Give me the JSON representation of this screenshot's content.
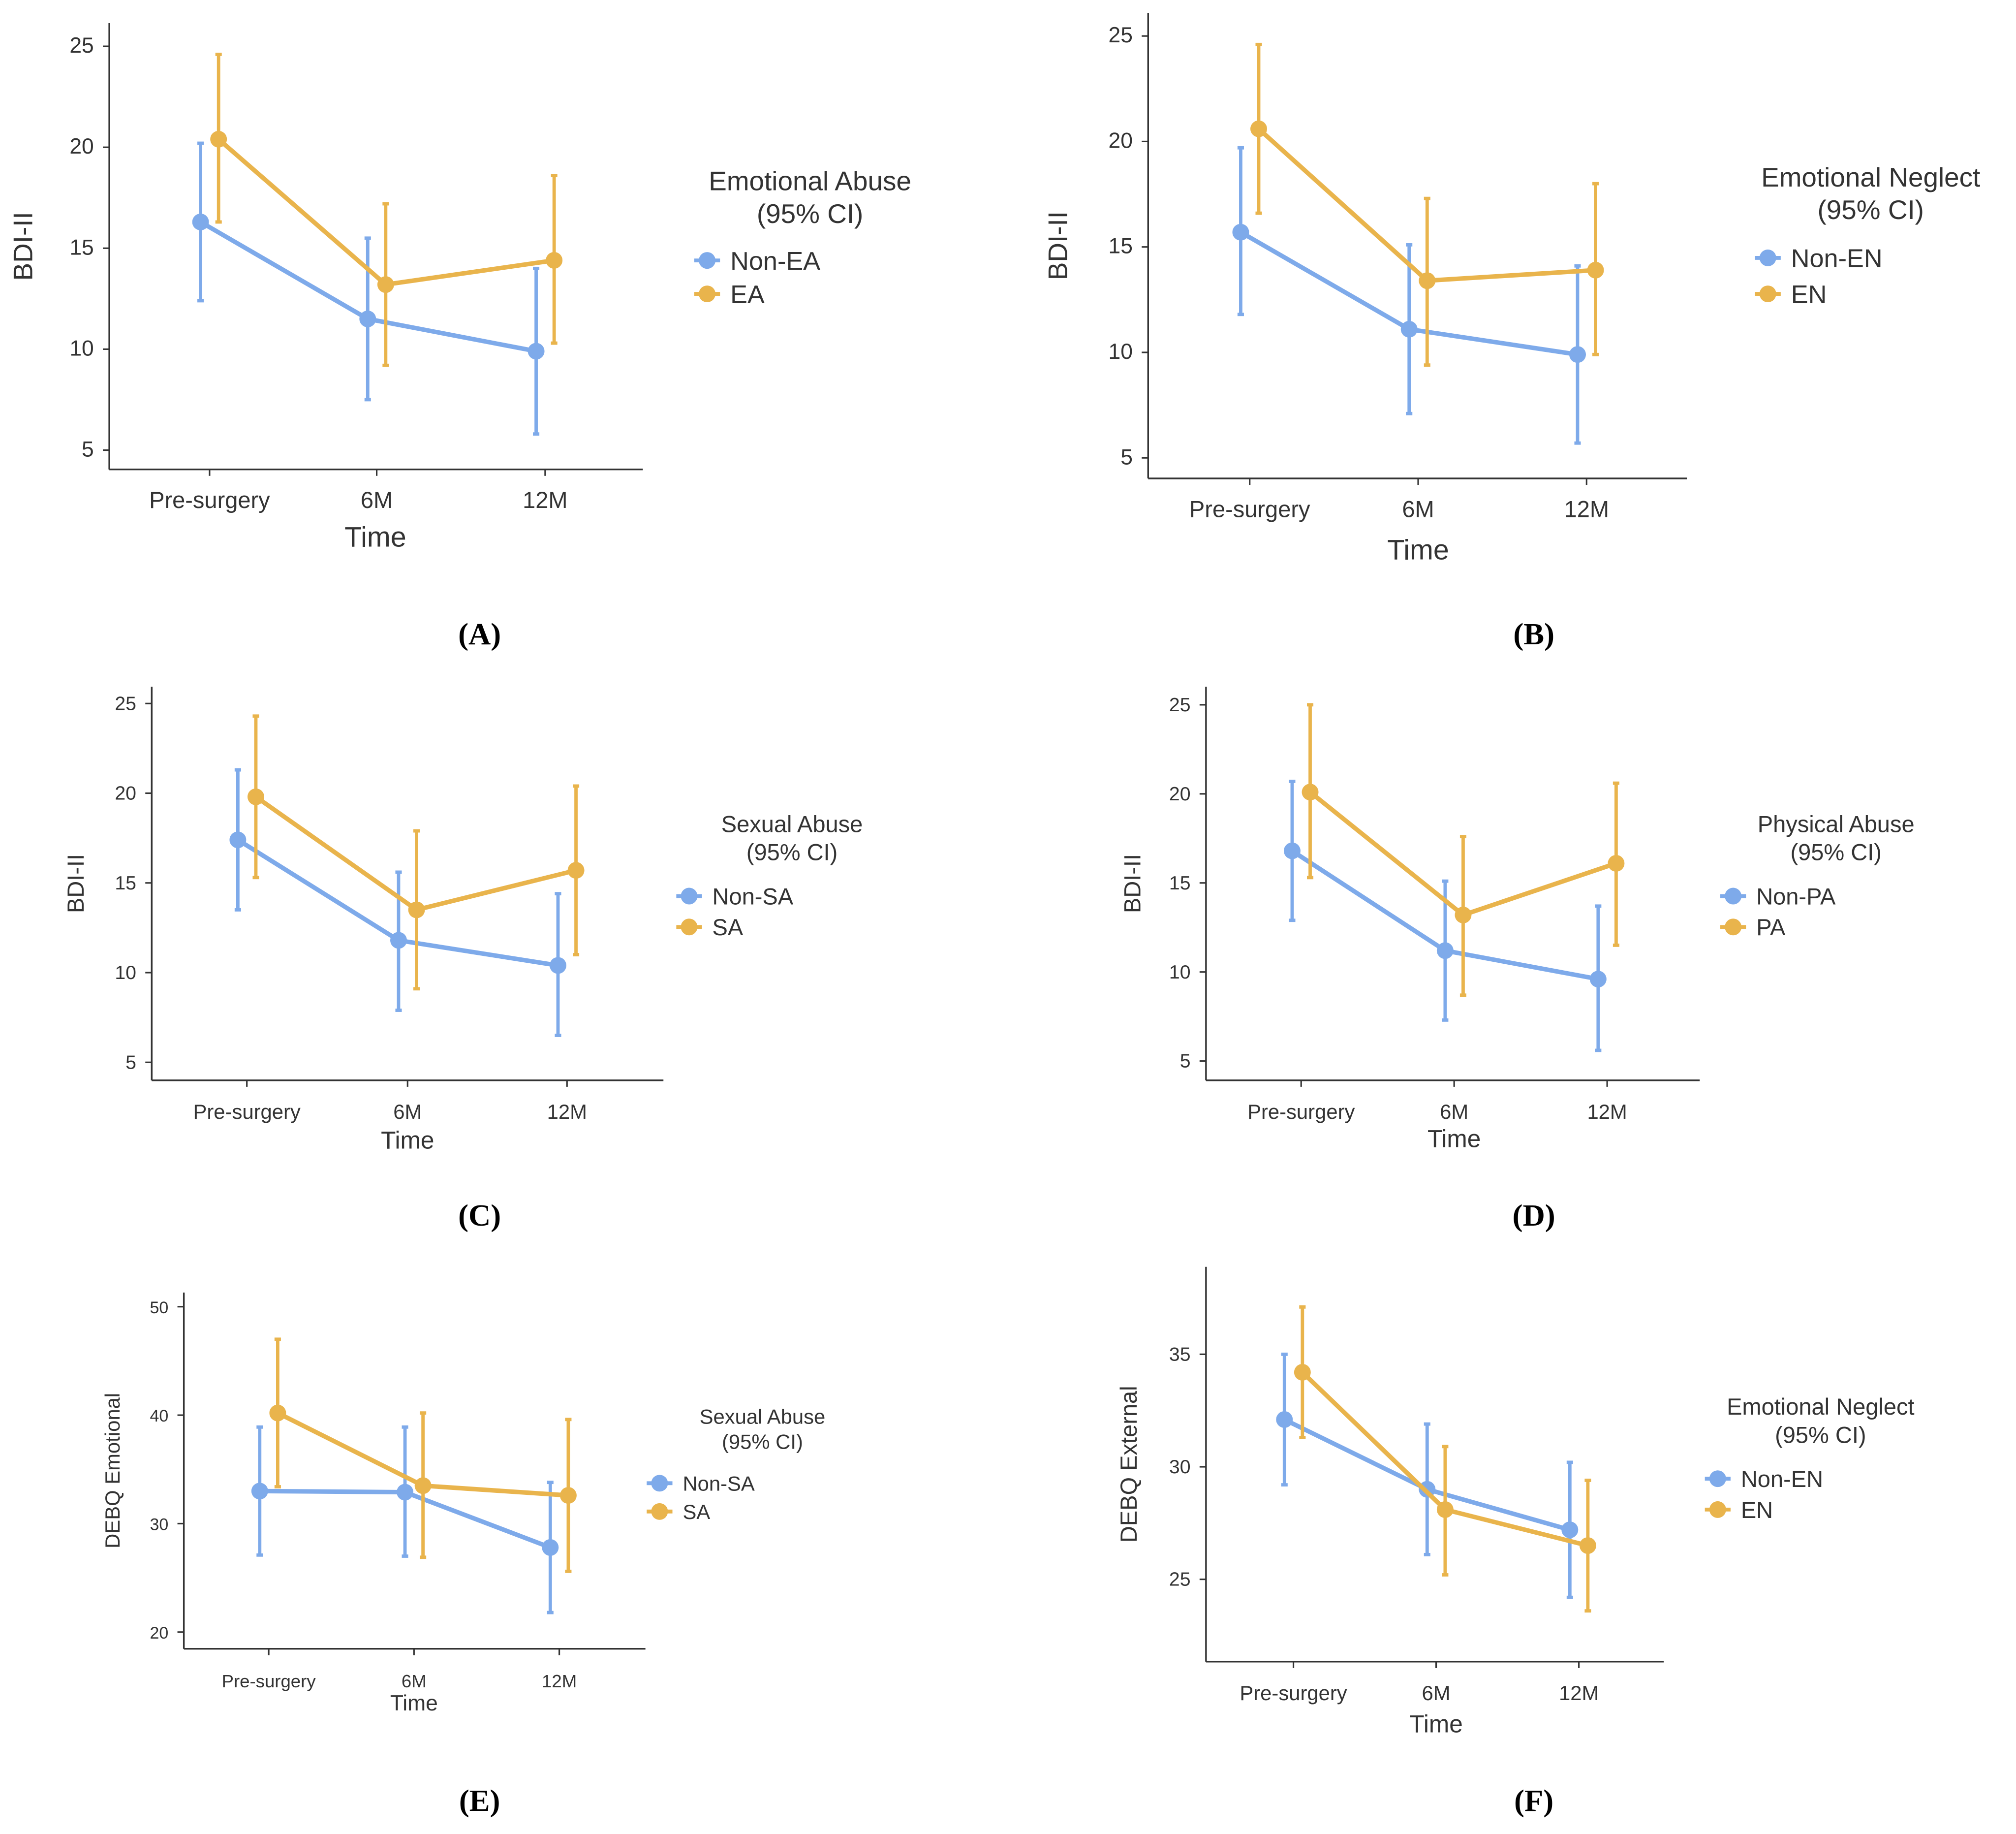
{
  "colors": {
    "group0": "#7eaaea",
    "group1": "#e9b44c",
    "axis": "#333333"
  },
  "chart_data": [
    {
      "type": "line",
      "panel": "(A)",
      "xlabel": "Time",
      "ylabel": "BDI-II",
      "categories": [
        "Pre-surgery",
        "6M",
        "12M"
      ],
      "ylim": [
        4,
        26
      ],
      "yticks": [
        5,
        10,
        15,
        20,
        25
      ],
      "legend_title": [
        "Emotional Abuse",
        "(95% CI)"
      ],
      "legend": "right",
      "series": [
        {
          "name": "Non-EA",
          "values": [
            16.3,
            11.5,
            9.9
          ],
          "lower": [
            12.4,
            7.5,
            5.8
          ],
          "upper": [
            20.2,
            15.5,
            14.0
          ]
        },
        {
          "name": "EA",
          "values": [
            20.4,
            13.2,
            14.4
          ],
          "lower": [
            16.3,
            9.2,
            10.3
          ],
          "upper": [
            24.6,
            17.2,
            18.6
          ]
        }
      ]
    },
    {
      "type": "line",
      "panel": "(B)",
      "xlabel": "Time",
      "ylabel": "BDI-II",
      "categories": [
        "Pre-surgery",
        "6M",
        "12M"
      ],
      "ylim": [
        4,
        26
      ],
      "yticks": [
        5,
        10,
        15,
        20,
        25
      ],
      "legend_title": [
        "Emotional Neglect",
        "(95% CI)"
      ],
      "legend": "right",
      "series": [
        {
          "name": "Non-EN",
          "values": [
            15.7,
            11.1,
            9.9
          ],
          "lower": [
            11.8,
            7.1,
            5.7
          ],
          "upper": [
            19.7,
            15.1,
            14.1
          ]
        },
        {
          "name": "EN",
          "values": [
            20.6,
            13.4,
            13.9
          ],
          "lower": [
            16.6,
            9.4,
            9.9
          ],
          "upper": [
            24.6,
            17.3,
            18.0
          ]
        }
      ]
    },
    {
      "type": "line",
      "panel": "(C)",
      "xlabel": "Time",
      "ylabel": "BDI-II",
      "categories": [
        "Pre-surgery",
        "6M",
        "12M"
      ],
      "ylim": [
        4,
        26
      ],
      "yticks": [
        5,
        10,
        15,
        20,
        25
      ],
      "legend_title": [
        "Sexual Abuse",
        "(95% CI)"
      ],
      "legend": "right",
      "series": [
        {
          "name": "Non-SA",
          "values": [
            17.4,
            11.8,
            10.4
          ],
          "lower": [
            13.5,
            7.9,
            6.5
          ],
          "upper": [
            21.3,
            15.6,
            14.4
          ]
        },
        {
          "name": "SA",
          "values": [
            19.8,
            13.5,
            15.7
          ],
          "lower": [
            15.3,
            9.1,
            11.0
          ],
          "upper": [
            24.3,
            17.9,
            20.4
          ]
        }
      ]
    },
    {
      "type": "line",
      "panel": "(D)",
      "xlabel": "Time",
      "ylabel": "BDI-II",
      "categories": [
        "Pre-surgery",
        "6M",
        "12M"
      ],
      "ylim": [
        4,
        26
      ],
      "yticks": [
        5,
        10,
        15,
        20,
        25
      ],
      "legend_title": [
        "Physical Abuse",
        "(95% CI)"
      ],
      "legend": "right",
      "series": [
        {
          "name": "Non-PA",
          "values": [
            16.8,
            11.2,
            9.6
          ],
          "lower": [
            12.9,
            7.3,
            5.6
          ],
          "upper": [
            20.7,
            15.1,
            13.7
          ]
        },
        {
          "name": "PA",
          "values": [
            20.1,
            13.2,
            16.1
          ],
          "lower": [
            15.3,
            8.7,
            11.5
          ],
          "upper": [
            25.0,
            17.6,
            20.6
          ]
        }
      ]
    },
    {
      "type": "line",
      "panel": "(E)",
      "xlabel": "Time",
      "ylabel": "DEBQ Emotional",
      "categories": [
        "Pre-surgery",
        "6M",
        "12M"
      ],
      "ylim": [
        19,
        51
      ],
      "yticks": [
        20,
        30,
        40,
        50
      ],
      "legend_title": [
        "Sexual Abuse",
        "(95% CI)"
      ],
      "legend": "right",
      "series": [
        {
          "name": "Non-SA",
          "values": [
            33.0,
            32.9,
            27.8
          ],
          "lower": [
            27.1,
            27.0,
            21.8
          ],
          "upper": [
            38.9,
            38.9,
            33.8
          ]
        },
        {
          "name": "SA",
          "values": [
            40.2,
            33.5,
            32.6
          ],
          "lower": [
            33.4,
            26.9,
            25.6
          ],
          "upper": [
            47.0,
            40.2,
            39.6
          ]
        }
      ]
    },
    {
      "type": "line",
      "panel": "(F)",
      "xlabel": "Time",
      "ylabel": "DEBQ External",
      "categories": [
        "Pre-surgery",
        "6M",
        "12M"
      ],
      "ylim": [
        21.5,
        38.5
      ],
      "yticks": [
        25,
        30,
        35
      ],
      "legend_title": [
        "Emotional Neglect",
        "(95% CI)"
      ],
      "legend": "right",
      "series": [
        {
          "name": "Non-EN",
          "values": [
            32.1,
            29.0,
            27.2
          ],
          "lower": [
            29.2,
            26.1,
            24.2
          ],
          "upper": [
            35.0,
            31.9,
            30.2
          ]
        },
        {
          "name": "EN",
          "values": [
            34.2,
            28.1,
            26.5
          ],
          "lower": [
            31.3,
            25.2,
            23.6
          ],
          "upper": [
            37.1,
            30.9,
            29.4
          ]
        }
      ]
    }
  ]
}
